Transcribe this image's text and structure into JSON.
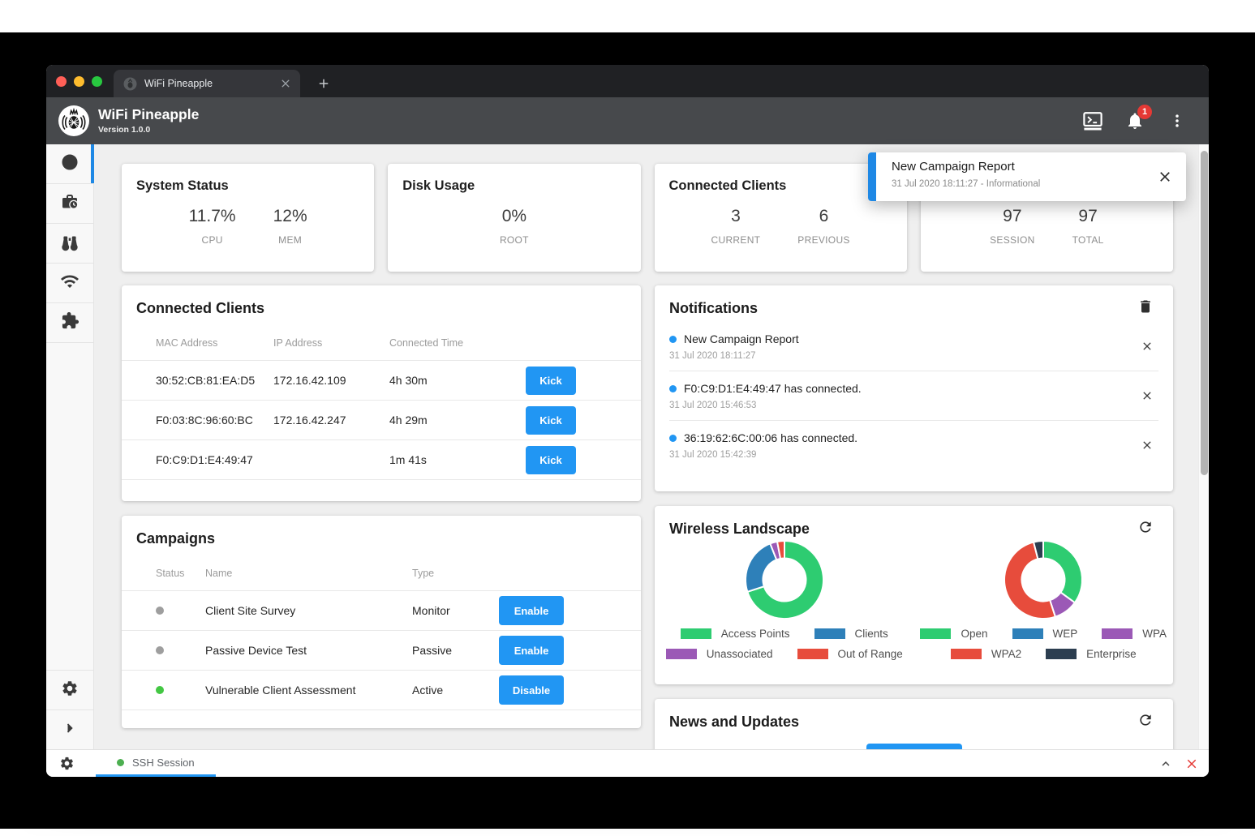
{
  "browser": {
    "tab_title": "WiFi Pineapple",
    "traffic_lights": [
      "close",
      "minimize",
      "zoom"
    ],
    "icons": {
      "tab_close": "x-icon",
      "new_tab": "plus-icon",
      "favicon": "pineapple-icon"
    }
  },
  "header": {
    "title": "WiFi Pineapple",
    "version": "Version 1.0.0",
    "notification_badge": "1",
    "icons": [
      "terminal-icon",
      "bell-icon",
      "kebab-menu-icon"
    ]
  },
  "sidebar": {
    "items": [
      {
        "name": "dashboard",
        "icon": "gauge-icon",
        "active": true
      },
      {
        "name": "campaigns",
        "icon": "briefcase-clock-icon",
        "active": false
      },
      {
        "name": "recon",
        "icon": "binoculars-icon",
        "active": false
      },
      {
        "name": "networking",
        "icon": "wifi-icon",
        "active": false
      },
      {
        "name": "modules",
        "icon": "puzzle-icon",
        "active": false
      }
    ],
    "bottom_items": [
      {
        "name": "settings",
        "icon": "gear-icon"
      },
      {
        "name": "expand",
        "icon": "chevron-right-icon"
      }
    ]
  },
  "toast": {
    "title": "New Campaign Report",
    "meta": "31 Jul 2020 18:11:27 - Informational",
    "accent_color": "#1e88e5"
  },
  "stat_cards": [
    {
      "title": "System Status",
      "stats": [
        {
          "value": "11.7%",
          "label": "CPU"
        },
        {
          "value": "12%",
          "label": "MEM"
        }
      ]
    },
    {
      "title": "Disk Usage",
      "stats": [
        {
          "value": "0%",
          "label": "ROOT"
        }
      ]
    },
    {
      "title": "Connected Clients",
      "stats": [
        {
          "value": "3",
          "label": "CURRENT"
        },
        {
          "value": "6",
          "label": "PREVIOUS"
        }
      ]
    },
    {
      "title": "",
      "stats": [
        {
          "value": "97",
          "label": "SESSION"
        },
        {
          "value": "97",
          "label": "TOTAL"
        }
      ]
    }
  ],
  "connected_clients": {
    "title": "Connected Clients",
    "columns": [
      "MAC Address",
      "IP Address",
      "Connected Time"
    ],
    "rows": [
      {
        "mac": "30:52:CB:81:EA:D5",
        "ip": "172.16.42.109",
        "time": "4h 30m",
        "action": "Kick"
      },
      {
        "mac": "F0:03:8C:96:60:BC",
        "ip": "172.16.42.247",
        "time": "4h 29m",
        "action": "Kick"
      },
      {
        "mac": "F0:C9:D1:E4:49:47",
        "ip": "",
        "time": "1m 41s",
        "action": "Kick"
      }
    ]
  },
  "campaigns": {
    "title": "Campaigns",
    "columns": [
      "Status",
      "Name",
      "Type"
    ],
    "rows": [
      {
        "status_color": "#9e9e9e",
        "name": "Client Site Survey",
        "type": "Monitor",
        "action": "Enable"
      },
      {
        "status_color": "#9e9e9e",
        "name": "Passive Device Test",
        "type": "Passive",
        "action": "Enable"
      },
      {
        "status_color": "#43c743",
        "name": "Vulnerable Client Assessment",
        "type": "Active",
        "action": "Disable"
      }
    ]
  },
  "notifications": {
    "title": "Notifications",
    "dot_color": "#2196f3",
    "items": [
      {
        "text": "New Campaign Report",
        "time": "31 Jul 2020 18:11:27"
      },
      {
        "text": "F0:C9:D1:E4:49:47 has connected.",
        "time": "31 Jul 2020 15:46:53"
      },
      {
        "text": "36:19:62:6C:00:06 has connected.",
        "time": "31 Jul 2020 15:42:39"
      }
    ]
  },
  "wireless": {
    "title": "Wireless Landscape"
  },
  "news": {
    "title": "News and Updates"
  },
  "chart_data": [
    {
      "type": "pie",
      "donut": true,
      "labels": [
        "Access Points",
        "Clients",
        "Unassociated",
        "Out of Range"
      ],
      "values": [
        70,
        24,
        3,
        3
      ],
      "values_are": "estimated_percent",
      "colors": [
        "#2ecc71",
        "#2e80b9",
        "#9b59b6",
        "#e74c3c"
      ],
      "legend_position": "bottom",
      "legend_rows": [
        [
          0,
          1
        ],
        [
          2,
          3
        ]
      ]
    },
    {
      "type": "pie",
      "donut": true,
      "labels": [
        "Open",
        "WEP",
        "WPA",
        "WPA2",
        "Enterprise"
      ],
      "values": [
        35,
        0,
        10,
        51,
        4
      ],
      "values_are": "estimated_percent",
      "colors": [
        "#2ecc71",
        "#2e80b9",
        "#9b59b6",
        "#e74c3c",
        "#2c3e50"
      ],
      "legend_position": "bottom",
      "legend_rows": [
        [
          0,
          1,
          2
        ],
        [
          3,
          4
        ]
      ]
    }
  ],
  "footer": {
    "tab_label": "SSH Session",
    "status_dot_color": "#4caf50"
  },
  "colors": {
    "accent": "#2196f3",
    "badge": "#e53935"
  }
}
